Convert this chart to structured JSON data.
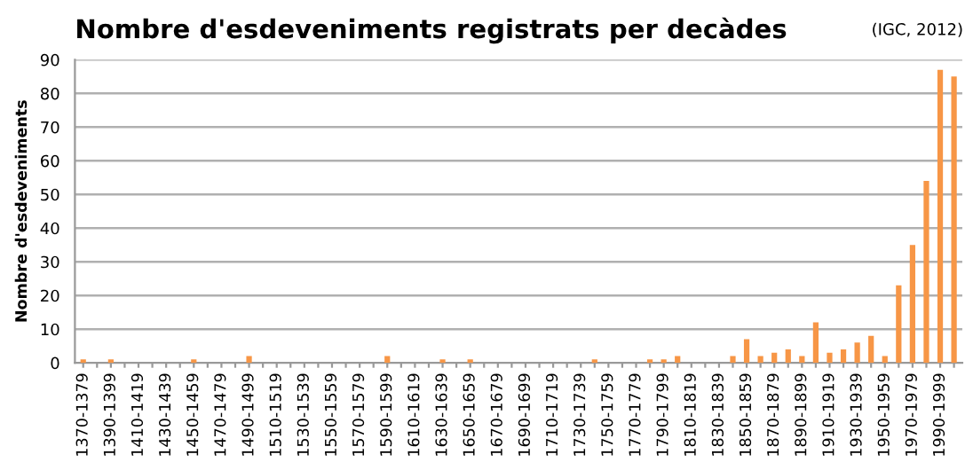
{
  "chart_data": {
    "type": "bar",
    "title": "Nombre d'esdeveniments registrats per decàdes",
    "ylabel": "Nombre d'esdeveniments",
    "annotations": [
      "(IGC, 2012)"
    ],
    "categories": [
      "1370-1379",
      null,
      "1390-1399",
      null,
      "1410-1419",
      null,
      "1430-1439",
      null,
      "1450-1459",
      null,
      "1470-1479",
      null,
      "1490-1499",
      null,
      "1510-1519",
      null,
      "1530-1539",
      null,
      "1550-1559",
      null,
      "1570-1579",
      null,
      "1590-1599",
      null,
      "1610-1619",
      null,
      "1630-1639",
      null,
      "1650-1659",
      null,
      "1670-1679",
      null,
      "1690-1699",
      null,
      "1710-1719",
      null,
      "1730-1739",
      null,
      "1750-1759",
      null,
      "1770-1779",
      null,
      "1790-1799",
      null,
      "1810-1819",
      null,
      "1830-1839",
      null,
      "1850-1859",
      null,
      "1870-1879",
      null,
      "1890-1899",
      null,
      "1910-1919",
      null,
      "1930-1939",
      null,
      "1950-1959",
      null,
      "1970-1979",
      null,
      "1990-1999",
      null
    ],
    "values": [
      1,
      0,
      1,
      0,
      0,
      0,
      0,
      0,
      1,
      0,
      0,
      0,
      2,
      0,
      0,
      0,
      0,
      0,
      0,
      0,
      0,
      0,
      2,
      0,
      0,
      0,
      1,
      0,
      1,
      0,
      0,
      0,
      0,
      0,
      0,
      0,
      0,
      1,
      0,
      0,
      0,
      1,
      1,
      2,
      0,
      0,
      0,
      2,
      7,
      2,
      3,
      4,
      2,
      12,
      3,
      4,
      6,
      8,
      2,
      23,
      35,
      54,
      87,
      85
    ],
    "color": "#f79646",
    "ylim": [
      0,
      90
    ],
    "yticks": [
      0,
      10,
      20,
      30,
      40,
      50,
      60,
      70,
      80,
      90
    ],
    "grid": "y"
  }
}
